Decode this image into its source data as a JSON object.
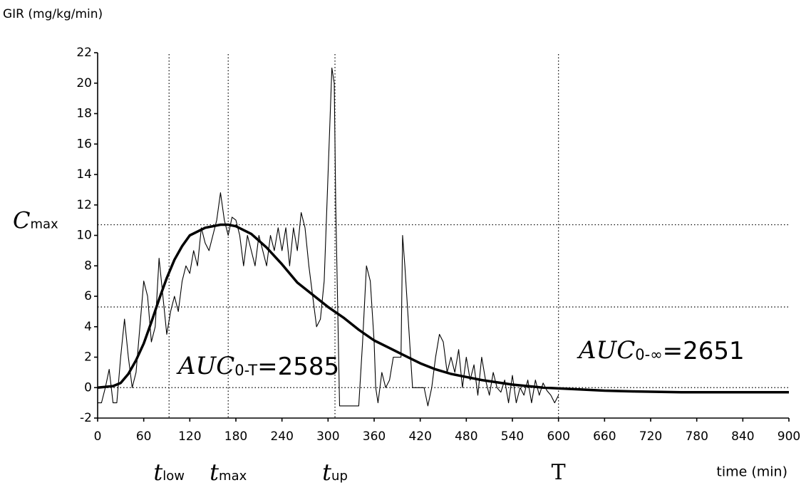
{
  "chart_data": {
    "type": "line",
    "y_label": "GIR (mg/kg/min)",
    "x_label": "time (min)",
    "xlim": [
      0,
      900
    ],
    "xticks": [
      0,
      60,
      120,
      180,
      240,
      300,
      360,
      420,
      480,
      540,
      600,
      660,
      720,
      780,
      840,
      900
    ],
    "ylim": [
      -2,
      22
    ],
    "yticks": [
      -2,
      0,
      2,
      4,
      6,
      8,
      10,
      12,
      14,
      16,
      18,
      20,
      22
    ],
    "series": [
      {
        "color": "#000000",
        "line_width": 1.1,
        "x": [
          0,
          5,
          10,
          15,
          20,
          25,
          30,
          35,
          40,
          45,
          50,
          55,
          60,
          65,
          70,
          75,
          80,
          85,
          90,
          95,
          100,
          105,
          110,
          115,
          120,
          125,
          130,
          135,
          140,
          145,
          150,
          155,
          160,
          165,
          170,
          175,
          180,
          185,
          190,
          195,
          200,
          205,
          210,
          215,
          220,
          225,
          230,
          235,
          240,
          245,
          250,
          255,
          260,
          265,
          270,
          275,
          280,
          285,
          290,
          295,
          300,
          305,
          308,
          310,
          315,
          320,
          330,
          340,
          345,
          350,
          355,
          360,
          362,
          365,
          370,
          375,
          380,
          385,
          390,
          395,
          397,
          400,
          405,
          410,
          415,
          420,
          425,
          430,
          435,
          440,
          445,
          450,
          455,
          460,
          465,
          470,
          475,
          480,
          485,
          490,
          495,
          500,
          505,
          510,
          515,
          520,
          525,
          530,
          535,
          540,
          545,
          550,
          555,
          560,
          565,
          570,
          575,
          580,
          585,
          590,
          595,
          600
        ],
        "values": [
          -1,
          -1,
          0,
          1.2,
          -1,
          -1,
          2,
          4.5,
          2,
          0,
          1,
          4,
          7,
          6,
          3,
          4,
          8.5,
          6,
          3.5,
          5,
          6,
          5,
          7,
          8,
          7.5,
          9,
          8,
          10.5,
          9.5,
          9,
          10,
          11,
          12.8,
          11,
          10,
          11.2,
          11,
          10,
          8,
          10,
          9,
          8,
          10,
          9,
          8,
          10,
          9,
          10.5,
          9,
          10.5,
          8,
          10.5,
          9,
          11.5,
          10.5,
          8,
          6,
          4,
          4.5,
          7,
          14,
          21,
          20,
          12,
          -1.2,
          -1.2,
          -1.2,
          -1.2,
          3,
          8,
          7,
          3,
          0,
          -1,
          1,
          0,
          0.5,
          2,
          2,
          2,
          10,
          8,
          4,
          0,
          0,
          0,
          0,
          -1.2,
          0,
          2,
          3.5,
          3,
          1,
          2,
          1,
          2.5,
          0,
          2,
          0.5,
          1.5,
          -0.5,
          2,
          0.5,
          -0.5,
          1,
          0,
          -0.3,
          0.5,
          -1,
          0.8,
          -1,
          0,
          -0.5,
          0.5,
          -1,
          0.5,
          -0.5,
          0.3,
          -0.2,
          -0.5,
          -1,
          -0.5
        ]
      },
      {
        "color": "#000000",
        "line_width": 3.5,
        "x": [
          0,
          20,
          30,
          40,
          50,
          60,
          70,
          80,
          90,
          100,
          110,
          120,
          140,
          160,
          170,
          180,
          200,
          220,
          240,
          260,
          280,
          300,
          320,
          340,
          360,
          380,
          400,
          420,
          440,
          460,
          480,
          500,
          540,
          580,
          620,
          660,
          700,
          760,
          840,
          900
        ],
        "values": [
          0,
          0.1,
          0.3,
          0.9,
          1.8,
          2.9,
          4.3,
          5.8,
          7.2,
          8.4,
          9.3,
          10,
          10.5,
          10.7,
          10.7,
          10.6,
          10.1,
          9.2,
          8.1,
          6.9,
          6.1,
          5.3,
          4.6,
          3.8,
          3.1,
          2.6,
          2.1,
          1.6,
          1.2,
          0.9,
          0.7,
          0.5,
          0.2,
          0,
          -0.1,
          -0.2,
          -0.25,
          -0.3,
          -0.3,
          -0.3
        ]
      }
    ],
    "vlines": [
      {
        "value": 93,
        "symbol": "t",
        "sub": "low"
      },
      {
        "value": 170,
        "symbol": "t",
        "sub": "max"
      },
      {
        "value": 309,
        "symbol": "t",
        "sub": "up"
      },
      {
        "value": 600,
        "symbol": "T"
      }
    ],
    "hlines": [
      {
        "value": 10.7,
        "symbol": "C",
        "sub": "max"
      },
      {
        "value": 5.3
      },
      {
        "value": 0
      }
    ],
    "annotations": [
      {
        "main": "AUC",
        "sub": "0-T",
        "rest": "=2585"
      },
      {
        "main": "AUC",
        "sub": "0-∞",
        "rest": "=2651"
      }
    ]
  }
}
